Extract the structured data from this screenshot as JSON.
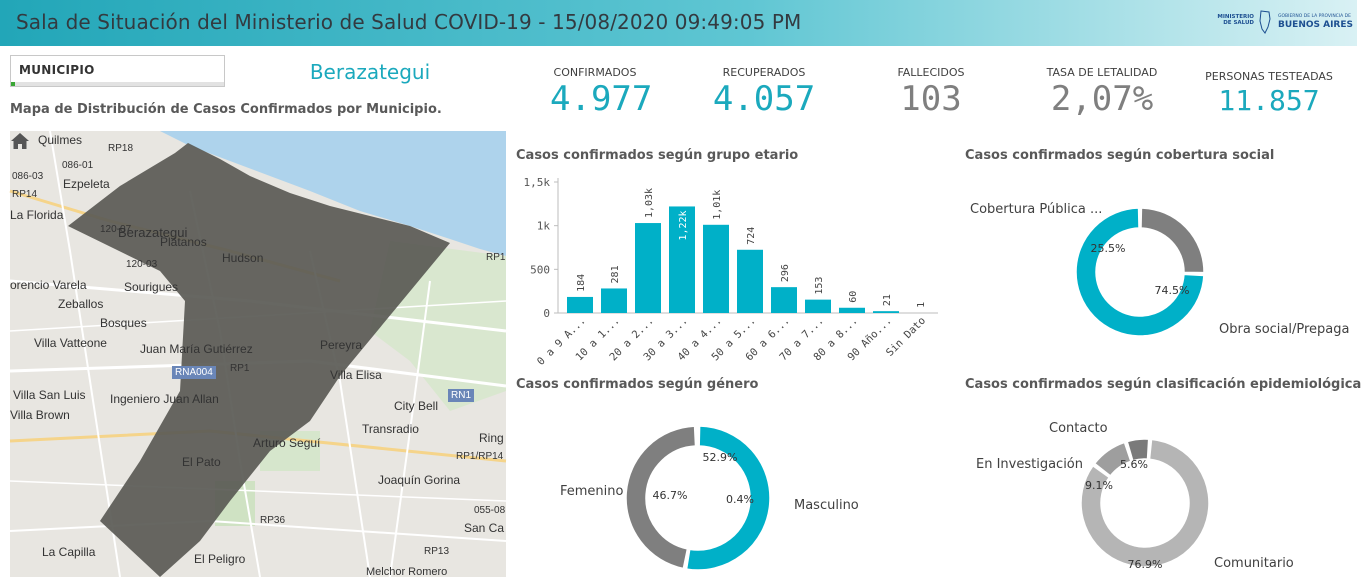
{
  "header": {
    "title": "Sala de Situación del Ministerio de Salud COVID-19 - 15/08/2020 09:49:05 PM",
    "logo_ministerio": "MINISTERIO DE SALUD",
    "logo_gba_small": "GOBIERNO DE LA PROVINCIA DE",
    "logo_gba_big": "BUENOS AIRES"
  },
  "filter": {
    "label": "MUNICIPIO",
    "selected": "Berazategui"
  },
  "map": {
    "title": "Mapa de Distribución de Casos Confirmados por Municipio.",
    "places": [
      "Quilmes",
      "086-01",
      "086-03",
      "Ezpeleta",
      "RP14",
      "La Florida",
      "Berazategui",
      "120-07",
      "Plátanos",
      "Hudson",
      "120-03",
      "orencio Varela",
      "Sourigues",
      "Zeballos",
      "Bosques",
      "Villa Vatteone",
      "Juan María Gutiérrez",
      "Pereyra",
      "Villa Elisa",
      "Villa San Luis",
      "Villa Brown",
      "Ingeniero Juan Allan",
      "City Bell",
      "Transradio",
      "Arturo Seguí",
      "Ring",
      "El Pato",
      "Joaquín Gorina",
      "055-08",
      "San Ca",
      "La Capilla",
      "El Peligro",
      "Melchor Romero"
    ],
    "roads": [
      "RP18",
      "RP1",
      "RP1",
      "RP1/RP14",
      "RP36",
      "RP13"
    ],
    "shields": [
      "RNA004",
      "RN1"
    ],
    "colors": {
      "water": "#aed3ec",
      "land": "#e8e6e1",
      "overlay": "#5a5a55"
    }
  },
  "kpis": [
    {
      "label": "CONFIRMADOS",
      "value": "4.977",
      "color": "#1ba9bd"
    },
    {
      "label": "RECUPERADOS",
      "value": "4.057",
      "color": "#1ba9bd"
    },
    {
      "label": "FALLECIDOS",
      "value": "103",
      "color": "#7f7f7f"
    },
    {
      "label": "TASA DE LETALIDAD",
      "value": "2,07%",
      "color": "#7f7f7f"
    },
    {
      "label": "PERSONAS TESTEADAS",
      "value": "11.857",
      "color": "#1ba9bd"
    }
  ],
  "charts": {
    "age": {
      "title": "Casos confirmados según grupo etario"
    },
    "coverage": {
      "title": "Casos confirmados según cobertura social"
    },
    "gender": {
      "title": "Casos confirmados según género"
    },
    "epi": {
      "title": "Casos confirmados según clasificación epidemiológica"
    }
  },
  "chart_data": [
    {
      "type": "bar",
      "title": "Casos confirmados según grupo etario",
      "categories": [
        "0 a 9 A...",
        "10 a 1...",
        "20 a 2...",
        "30 a 3...",
        "40 a 4...",
        "50 a 5...",
        "60 a 6...",
        "70 a 7...",
        "80 a 8...",
        "90 Año...",
        "Sin Dato"
      ],
      "values": [
        184,
        281,
        1030,
        1220,
        1010,
        724,
        296,
        153,
        60,
        21,
        1
      ],
      "value_labels": [
        "184",
        "281",
        "1,03k",
        "1,22k",
        "1,01k",
        "724",
        "296",
        "153",
        "60",
        "21",
        "1"
      ],
      "yticks": [
        "0",
        "500",
        "1k",
        "1,5k"
      ],
      "ylim": [
        0,
        1500
      ],
      "color": "#00b0c8"
    },
    {
      "type": "pie",
      "title": "Casos confirmados según cobertura social",
      "slices": [
        {
          "name": "Cobertura Pública ...",
          "value": 25.5,
          "label": "25.5%",
          "color": "#7f7f7f"
        },
        {
          "name": "Obra social/Prepaga",
          "value": 74.5,
          "label": "74.5%",
          "color": "#00b0c8"
        }
      ]
    },
    {
      "type": "pie",
      "title": "Casos confirmados según género",
      "slices": [
        {
          "name": "Masculino",
          "value": 52.9,
          "label": "52.9%",
          "color": "#00b0c8"
        },
        {
          "name": "Femenino",
          "value": 46.7,
          "label": "46.7%",
          "color": "#7f7f7f"
        },
        {
          "name": "",
          "value": 0.4,
          "label": "0.4%",
          "color": "#b5b5b5"
        }
      ]
    },
    {
      "type": "pie",
      "title": "Casos confirmados según clasificación epidemiológica",
      "slices": [
        {
          "name": "Comunitario",
          "value": 76.9,
          "label": "76.9%",
          "color": "#b5b5b5"
        },
        {
          "name": "En Investigación",
          "value": 9.1,
          "label": "9.1%",
          "color": "#9e9e9e"
        },
        {
          "name": "Contacto",
          "value": 5.6,
          "label": "5.6%",
          "color": "#7a7a7a"
        }
      ]
    }
  ]
}
